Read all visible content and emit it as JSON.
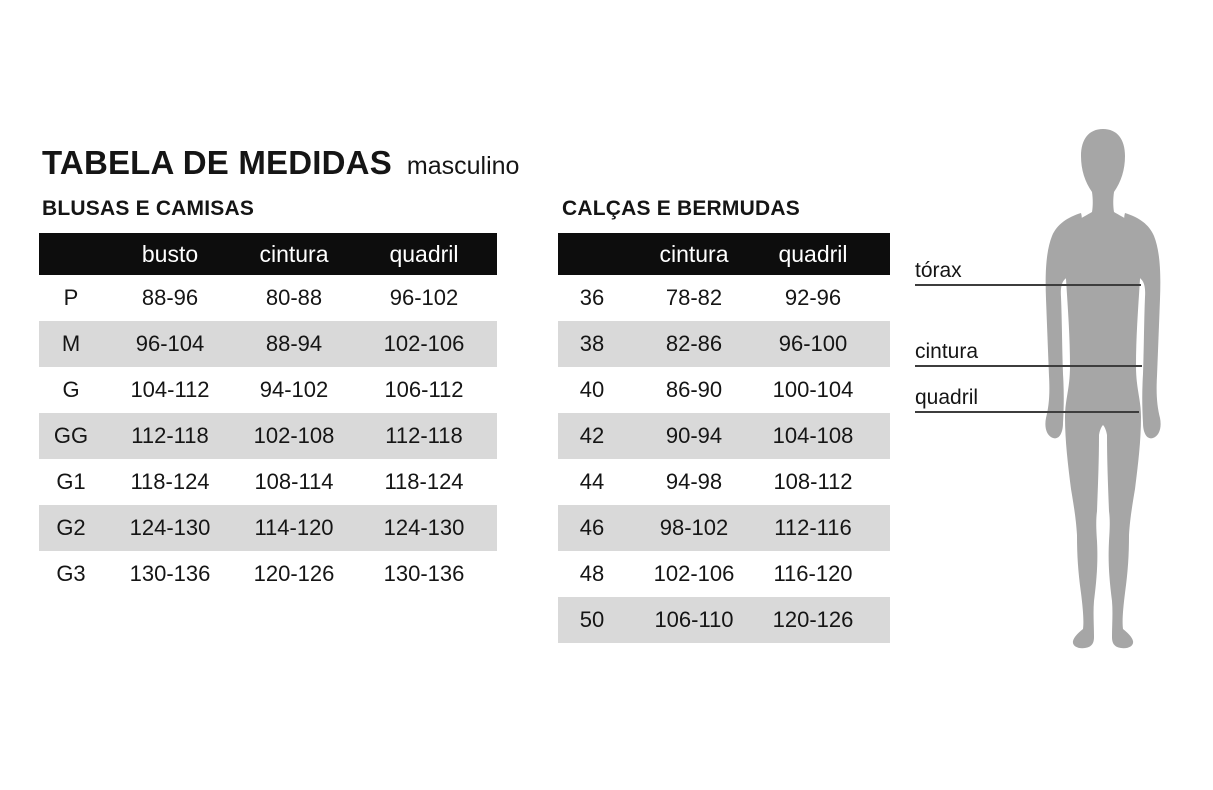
{
  "page": {
    "title": "TABELA DE MEDIDAS",
    "subtitle": "masculino"
  },
  "tables": [
    {
      "section": "BLUSAS E CAMISAS",
      "columns": [
        "",
        "busto",
        "cintura",
        "quadril"
      ],
      "rows": [
        [
          "P",
          "88-96",
          "80-88",
          "96-102"
        ],
        [
          "M",
          "96-104",
          "88-94",
          "102-106"
        ],
        [
          "G",
          "104-112",
          "94-102",
          "106-112"
        ],
        [
          "GG",
          "112-118",
          "102-108",
          "112-118"
        ],
        [
          "G1",
          "118-124",
          "108-114",
          "118-124"
        ],
        [
          "G2",
          "124-130",
          "114-120",
          "124-130"
        ],
        [
          "G3",
          "130-136",
          "120-126",
          "130-136"
        ]
      ]
    },
    {
      "section": "CALÇAS E BERMUDAS",
      "columns": [
        "",
        "cintura",
        "quadril"
      ],
      "rows": [
        [
          "36",
          "78-82",
          "92-96"
        ],
        [
          "38",
          "82-86",
          "96-100"
        ],
        [
          "40",
          "86-90",
          "100-104"
        ],
        [
          "42",
          "90-94",
          "104-108"
        ],
        [
          "44",
          "94-98",
          "108-112"
        ],
        [
          "46",
          "98-102",
          "112-116"
        ],
        [
          "48",
          "102-106",
          "116-120"
        ],
        [
          "50",
          "106-110",
          "120-126"
        ]
      ]
    }
  ],
  "figure": {
    "labels": [
      "tórax",
      "cintura",
      "quadril"
    ]
  },
  "colors": {
    "header_bg": "#0d0d0d",
    "header_text": "#ffffff",
    "row_stripe": "#d9d9d9",
    "silhouette": "#a6a6a6",
    "measure_line": "#3d3d3d",
    "text": "#151515"
  }
}
